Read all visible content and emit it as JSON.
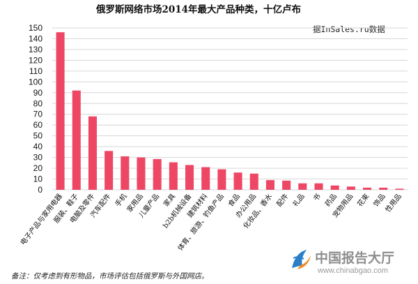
{
  "chart_data": {
    "type": "bar",
    "title": "俄罗斯网络市场2014年最大产品种类，十亿卢布",
    "source_note": "据InSales.ru数据",
    "categories": [
      "电子产品与家用电器",
      "服装、鞋子",
      "电脑及零件",
      "汽车配件",
      "手机",
      "家用品",
      "儿童产品",
      "家具",
      "b2b机械设备",
      "建筑材料",
      "体育、旅游、钓鱼产品",
      "食品",
      "办公用品",
      "化妆品、香水",
      "配件",
      "礼品",
      "书",
      "药品",
      "宠物用品",
      "花束",
      "饰品",
      "性用品"
    ],
    "values": [
      146,
      92,
      68,
      36,
      31,
      30,
      28.5,
      25.5,
      23,
      21,
      19,
      16,
      15,
      9,
      8.5,
      6,
      6,
      4,
      3,
      2,
      2,
      1
    ],
    "yticks": [
      0,
      10,
      20,
      30,
      40,
      50,
      60,
      70,
      80,
      90,
      100,
      110,
      120,
      130,
      140,
      150
    ],
    "ylim": [
      0,
      150
    ],
    "xlabel": "",
    "ylabel": "",
    "grid": true,
    "bar_color": "#ee4766"
  },
  "footnote": "备注：仅考虑到有形物品，市场评估包括俄罗斯与外国网店。",
  "watermark": {
    "name": "中国报告大厅",
    "url": "www.chinabgao.com"
  }
}
